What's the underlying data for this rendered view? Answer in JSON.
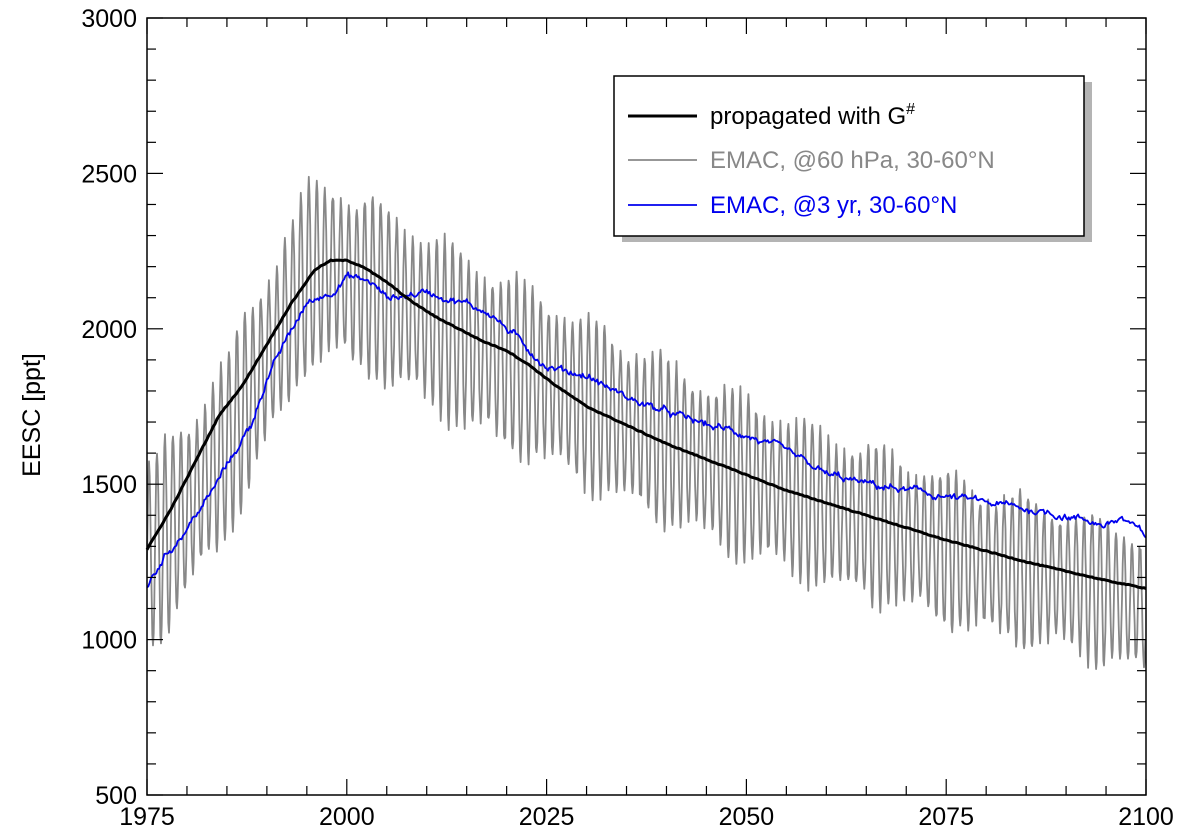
{
  "chart_data": {
    "type": "line",
    "title": "",
    "xlabel": "",
    "ylabel": "EESC [ppt]",
    "xlim": [
      1975,
      2100
    ],
    "ylim": [
      500,
      3000
    ],
    "xticks": [
      1975,
      2000,
      2025,
      2050,
      2075,
      2100
    ],
    "yticks": [
      500,
      1000,
      1500,
      2000,
      2500,
      3000
    ],
    "xtick_labels": [
      "1975",
      "2000",
      "2025",
      "2050",
      "2075",
      "2100"
    ],
    "ytick_labels": [
      "500",
      "1000",
      "1500",
      "2000",
      "2500",
      "3000"
    ],
    "grid": false,
    "legend_position": "top-right",
    "series": [
      {
        "name": "propagated with G",
        "name_superscript": "#",
        "color": "#000000",
        "line_width": 3,
        "style": "smooth",
        "x": [
          1975,
          1978,
          1981,
          1984,
          1987,
          1990,
          1993,
          1996,
          1998,
          2000,
          2002,
          2005,
          2008,
          2011,
          2014,
          2017,
          2020,
          2023,
          2026,
          2030,
          2035,
          2040,
          2045,
          2050,
          2055,
          2060,
          2065,
          2070,
          2075,
          2080,
          2085,
          2090,
          2095,
          2100
        ],
        "y": [
          1290,
          1420,
          1570,
          1720,
          1820,
          1950,
          2080,
          2190,
          2220,
          2220,
          2200,
          2150,
          2090,
          2040,
          2000,
          1960,
          1930,
          1880,
          1820,
          1750,
          1690,
          1630,
          1580,
          1530,
          1480,
          1440,
          1400,
          1360,
          1320,
          1285,
          1250,
          1220,
          1190,
          1165
        ]
      },
      {
        "name": "EMAC, @60 hPa, 30-60°N",
        "color": "#888888",
        "line_width": 1.8,
        "style": "oscillating",
        "annual_amplitude": 280,
        "x": [
          1975,
          1980,
          1985,
          1990,
          1995,
          1998,
          2000,
          2005,
          2010,
          2015,
          2020,
          2025,
          2030,
          2035,
          2040,
          2045,
          2050,
          2055,
          2060,
          2065,
          2070,
          2075,
          2080,
          2085,
          2090,
          2095,
          2100
        ],
        "y": [
          1250,
          1420,
          1620,
          1900,
          2160,
          2200,
          2160,
          2110,
          2030,
          1960,
          1890,
          1830,
          1760,
          1700,
          1640,
          1580,
          1520,
          1470,
          1420,
          1380,
          1340,
          1290,
          1250,
          1220,
          1190,
          1150,
          1110
        ]
      },
      {
        "name": "EMAC, @3 yr, 30-60°N",
        "color": "#0000ee",
        "line_width": 1.8,
        "style": "noisy",
        "x": [
          1975,
          1977,
          1980,
          1983,
          1985,
          1988,
          1990,
          1993,
          1995,
          1998,
          2000,
          2003,
          2005,
          2008,
          2010,
          2013,
          2015,
          2018,
          2020,
          2023,
          2025,
          2030,
          2035,
          2040,
          2045,
          2050,
          2055,
          2060,
          2065,
          2070,
          2075,
          2080,
          2085,
          2090,
          2095,
          2097,
          2100
        ],
        "y": [
          1170,
          1260,
          1360,
          1470,
          1560,
          1690,
          1840,
          1990,
          2080,
          2120,
          2170,
          2150,
          2100,
          2110,
          2120,
          2100,
          2080,
          2050,
          2000,
          1930,
          1880,
          1850,
          1780,
          1730,
          1690,
          1660,
          1600,
          1530,
          1500,
          1480,
          1460,
          1440,
          1420,
          1400,
          1370,
          1390,
          1330
        ]
      }
    ]
  }
}
